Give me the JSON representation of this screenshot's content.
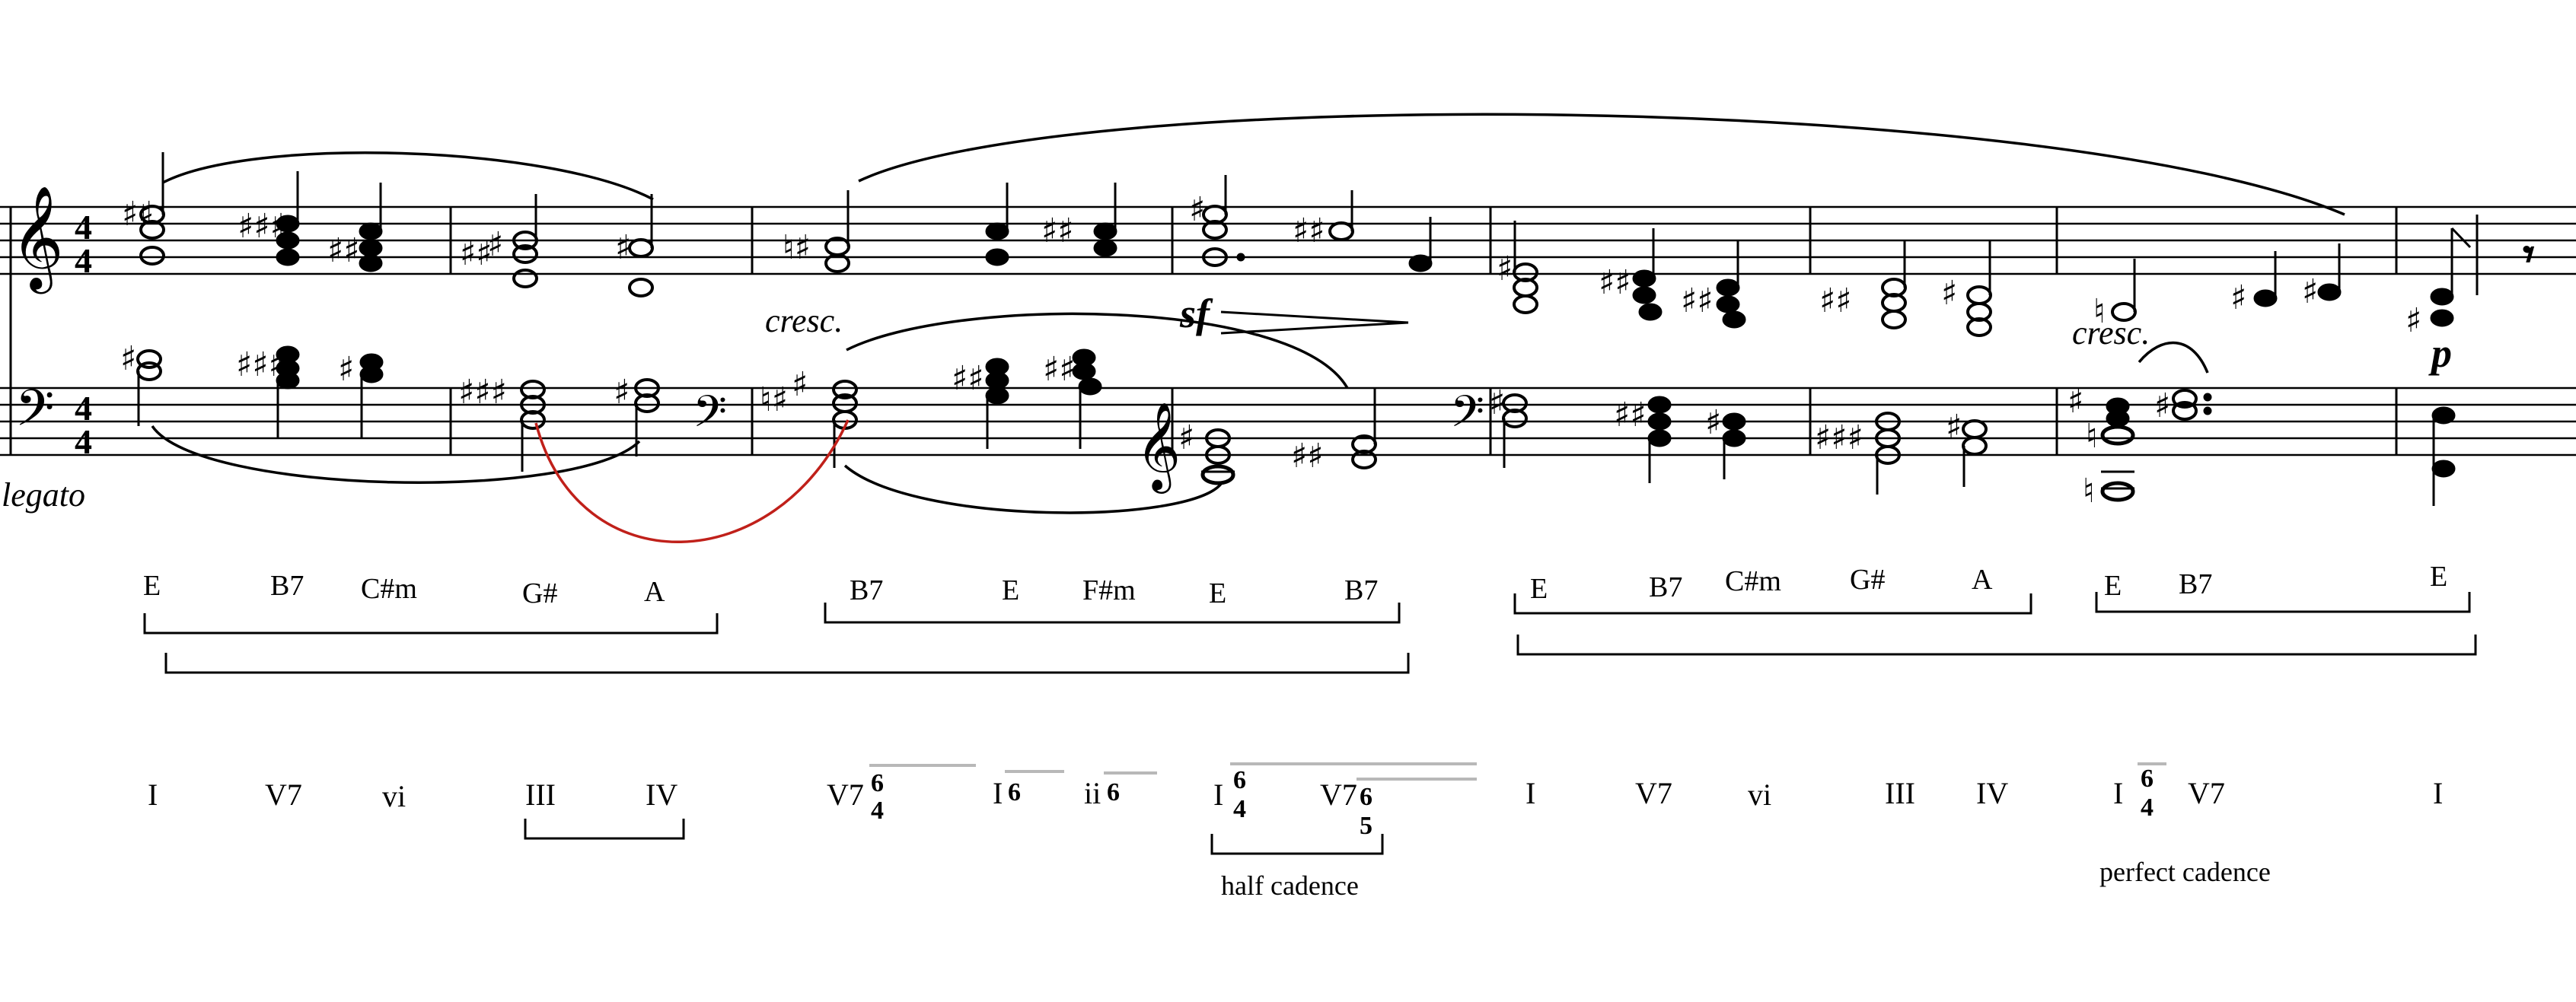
{
  "expressions": {
    "legato": "legato",
    "cresc1": "cresc.",
    "cresc2": "cresc.",
    "sf": "sf",
    "p": "p"
  },
  "time_signature": {
    "numerator": "4",
    "denominator": "4"
  },
  "chords": [
    "E",
    "B7",
    "C#m",
    "G#",
    "A",
    "B7",
    "E",
    "F#m",
    "E",
    "B7",
    "E",
    "B7",
    "C#m",
    "G#",
    "A",
    "E",
    "B7",
    "E"
  ],
  "roman_numerals": [
    "I",
    "V7",
    "vi",
    "III",
    "IV",
    "V7",
    "I",
    "ii",
    "I",
    "V7",
    "I",
    "V7",
    "vi",
    "III",
    "IV",
    "I",
    "V7",
    "I"
  ],
  "figures": {
    "v7_64_top": "6",
    "v7_64_bot": "4",
    "i6": "6",
    "ii6": "6",
    "i64_top": "6",
    "i64_bot": "4",
    "v765_top": "6",
    "v765_bot": "5",
    "i64b_top": "6",
    "i64b_bot": "4"
  },
  "cadences": {
    "half": "half cadence",
    "perfect": "perfect cadence"
  },
  "colors": {
    "ink": "#000000",
    "slur_red": "#c0201a",
    "figure_line": "#b8b8b8"
  }
}
